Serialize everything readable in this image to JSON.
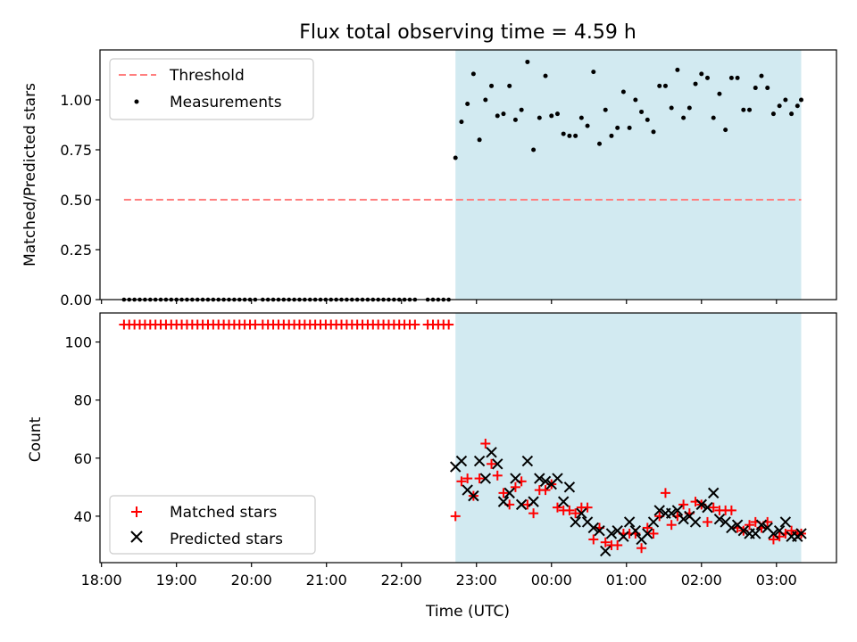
{
  "title": "Flux total observing time = 4.59 h",
  "xlabel": "Time (UTC)",
  "x_ticks": [
    "18:00",
    "19:00",
    "20:00",
    "21:00",
    "22:00",
    "23:00",
    "00:00",
    "01:00",
    "02:00",
    "03:00"
  ],
  "colors": {
    "threshold": "#ff7f7f",
    "measure": "#000000",
    "matched": "#ff0000",
    "predicted": "#000000",
    "shade": "#add8e6"
  },
  "chart_data": [
    {
      "type": "scatter",
      "ylabel": "Matched/Predicted stars",
      "ylim": [
        0.0,
        1.25
      ],
      "y_ticks": [
        "0.00",
        "0.25",
        "0.50",
        "0.75",
        "1.00"
      ],
      "xlim": [
        17.98,
        27.8
      ],
      "shaded_range": [
        22.72,
        27.33
      ],
      "legend_position": "upper left",
      "threshold": {
        "name": "Threshold",
        "y": 0.5,
        "x": [
          18.3,
          27.33
        ]
      },
      "measurements": {
        "name": "Measurements",
        "zero_x": [
          18.3,
          18.37,
          18.44,
          18.51,
          18.58,
          18.65,
          18.72,
          18.79,
          18.86,
          18.93,
          19.0,
          19.07,
          19.14,
          19.21,
          19.28,
          19.35,
          19.42,
          19.49,
          19.56,
          19.63,
          19.7,
          19.77,
          19.84,
          19.91,
          19.98,
          20.05,
          20.15,
          20.22,
          20.29,
          20.36,
          20.43,
          20.5,
          20.57,
          20.64,
          20.71,
          20.78,
          20.85,
          20.92,
          20.99,
          21.06,
          21.13,
          21.2,
          21.27,
          21.34,
          21.41,
          21.48,
          21.55,
          21.62,
          21.69,
          21.76,
          21.83,
          21.9,
          21.97,
          22.04,
          22.11,
          22.18,
          22.35,
          22.42,
          22.49,
          22.56,
          22.63
        ],
        "x": [
          22.72,
          22.8,
          22.88,
          22.96,
          23.04,
          23.12,
          23.2,
          23.28,
          23.36,
          23.44,
          23.52,
          23.6,
          23.68,
          23.76,
          23.84,
          23.92,
          24.0,
          24.08,
          24.16,
          24.24,
          24.32,
          24.4,
          24.48,
          24.56,
          24.64,
          24.72,
          24.8,
          24.88,
          24.96,
          25.04,
          25.12,
          25.2,
          25.28,
          25.36,
          25.44,
          25.52,
          25.6,
          25.68,
          25.76,
          25.84,
          25.92,
          26.0,
          26.08,
          26.16,
          26.24,
          26.32,
          26.4,
          26.48,
          26.56,
          26.64,
          26.72,
          26.8,
          26.88,
          26.96,
          27.04,
          27.12,
          27.2,
          27.28,
          27.33
        ],
        "y": [
          0.71,
          0.89,
          0.98,
          1.13,
          0.8,
          1.0,
          1.07,
          0.92,
          0.93,
          1.07,
          0.9,
          0.95,
          1.19,
          0.75,
          0.91,
          1.12,
          0.92,
          0.93,
          0.83,
          0.82,
          0.82,
          0.91,
          0.87,
          1.14,
          0.78,
          0.95,
          0.82,
          0.86,
          1.04,
          0.86,
          1.0,
          0.94,
          0.9,
          0.84,
          1.07,
          1.07,
          0.96,
          1.15,
          0.91,
          0.96,
          1.08,
          1.13,
          1.11,
          0.91,
          1.03,
          0.85,
          1.11,
          1.11,
          0.95,
          0.95,
          1.06,
          1.12,
          1.06,
          0.93,
          0.97,
          1.0,
          0.93,
          0.97,
          1.0
        ]
      }
    },
    {
      "type": "scatter",
      "ylabel": "Count",
      "ylim": [
        24,
        110
      ],
      "y_ticks": [
        "40",
        "60",
        "80",
        "100"
      ],
      "xlim": [
        17.98,
        27.8
      ],
      "shaded_range": [
        22.72,
        27.33
      ],
      "legend_position": "lower left",
      "flat_count": 106,
      "series": [
        {
          "name": "Matched stars",
          "marker": "plus",
          "x": [
            22.72,
            22.8,
            22.88,
            22.96,
            23.04,
            23.12,
            23.2,
            23.28,
            23.36,
            23.44,
            23.52,
            23.6,
            23.68,
            23.76,
            23.84,
            23.92,
            24.0,
            24.08,
            24.16,
            24.24,
            24.32,
            24.4,
            24.48,
            24.56,
            24.64,
            24.72,
            24.8,
            24.88,
            24.96,
            25.04,
            25.12,
            25.2,
            25.28,
            25.36,
            25.44,
            25.52,
            25.6,
            25.68,
            25.76,
            25.84,
            25.92,
            26.0,
            26.08,
            26.16,
            26.24,
            26.32,
            26.4,
            26.48,
            26.56,
            26.64,
            26.72,
            26.8,
            26.88,
            26.96,
            27.04,
            27.12,
            27.2,
            27.28,
            27.33
          ],
          "y": [
            40,
            52,
            53,
            47,
            53,
            65,
            58,
            54,
            48,
            44,
            50,
            52,
            44,
            41,
            49,
            49,
            51,
            43,
            42,
            42,
            41,
            43,
            43,
            32,
            36,
            31,
            30,
            30,
            34,
            34,
            34,
            29,
            36,
            34,
            40,
            48,
            37,
            40,
            44,
            41,
            45,
            44,
            38,
            43,
            42,
            42,
            42,
            36,
            35,
            37,
            38,
            36,
            38,
            32,
            33,
            34,
            35,
            34,
            34
          ]
        },
        {
          "name": "Predicted stars",
          "marker": "x",
          "x": [
            22.72,
            22.8,
            22.88,
            22.96,
            23.04,
            23.12,
            23.2,
            23.28,
            23.36,
            23.44,
            23.52,
            23.6,
            23.68,
            23.76,
            23.84,
            23.92,
            24.0,
            24.08,
            24.16,
            24.24,
            24.32,
            24.4,
            24.48,
            24.56,
            24.64,
            24.72,
            24.8,
            24.88,
            24.96,
            25.04,
            25.12,
            25.2,
            25.28,
            25.36,
            25.44,
            25.52,
            25.6,
            25.68,
            25.76,
            25.84,
            25.92,
            26.0,
            26.08,
            26.16,
            26.24,
            26.32,
            26.4,
            26.48,
            26.56,
            26.64,
            26.72,
            26.8,
            26.88,
            26.96,
            27.04,
            27.12,
            27.2,
            27.28,
            27.33
          ],
          "y": [
            57,
            59,
            49,
            47,
            59,
            53,
            62,
            58,
            45,
            48,
            53,
            44,
            59,
            45,
            53,
            52,
            51,
            53,
            45,
            50,
            38,
            41,
            38,
            36,
            35,
            28,
            34,
            35,
            33,
            38,
            35,
            32,
            34,
            38,
            42,
            41,
            41,
            42,
            39,
            40,
            38,
            44,
            43,
            48,
            39,
            38,
            36,
            37,
            35,
            34,
            34,
            37,
            36,
            34,
            35,
            38,
            33,
            33,
            34
          ]
        }
      ]
    }
  ]
}
